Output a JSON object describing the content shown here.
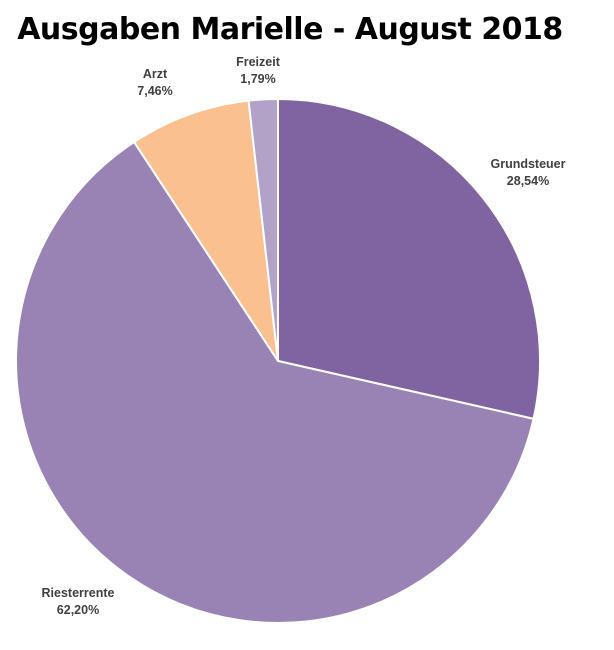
{
  "chart_data": {
    "type": "pie",
    "title": "Ausgaben Marielle - August 2018",
    "start_angle_deg": 0,
    "direction": "clockwise",
    "legend": "none",
    "slices": [
      {
        "label": "Grundsteuer",
        "value": 28.54,
        "display": "28,54%",
        "color": "#8064a2"
      },
      {
        "label": "Riesterrente",
        "value": 62.2,
        "display": "62,20%",
        "color": "#9883b4"
      },
      {
        "label": "Arzt",
        "value": 7.46,
        "display": "7,46%",
        "color": "#fac090"
      },
      {
        "label": "Freizeit",
        "value": 1.79,
        "display": "1,79%",
        "color": "#b3a2c7"
      }
    ]
  }
}
